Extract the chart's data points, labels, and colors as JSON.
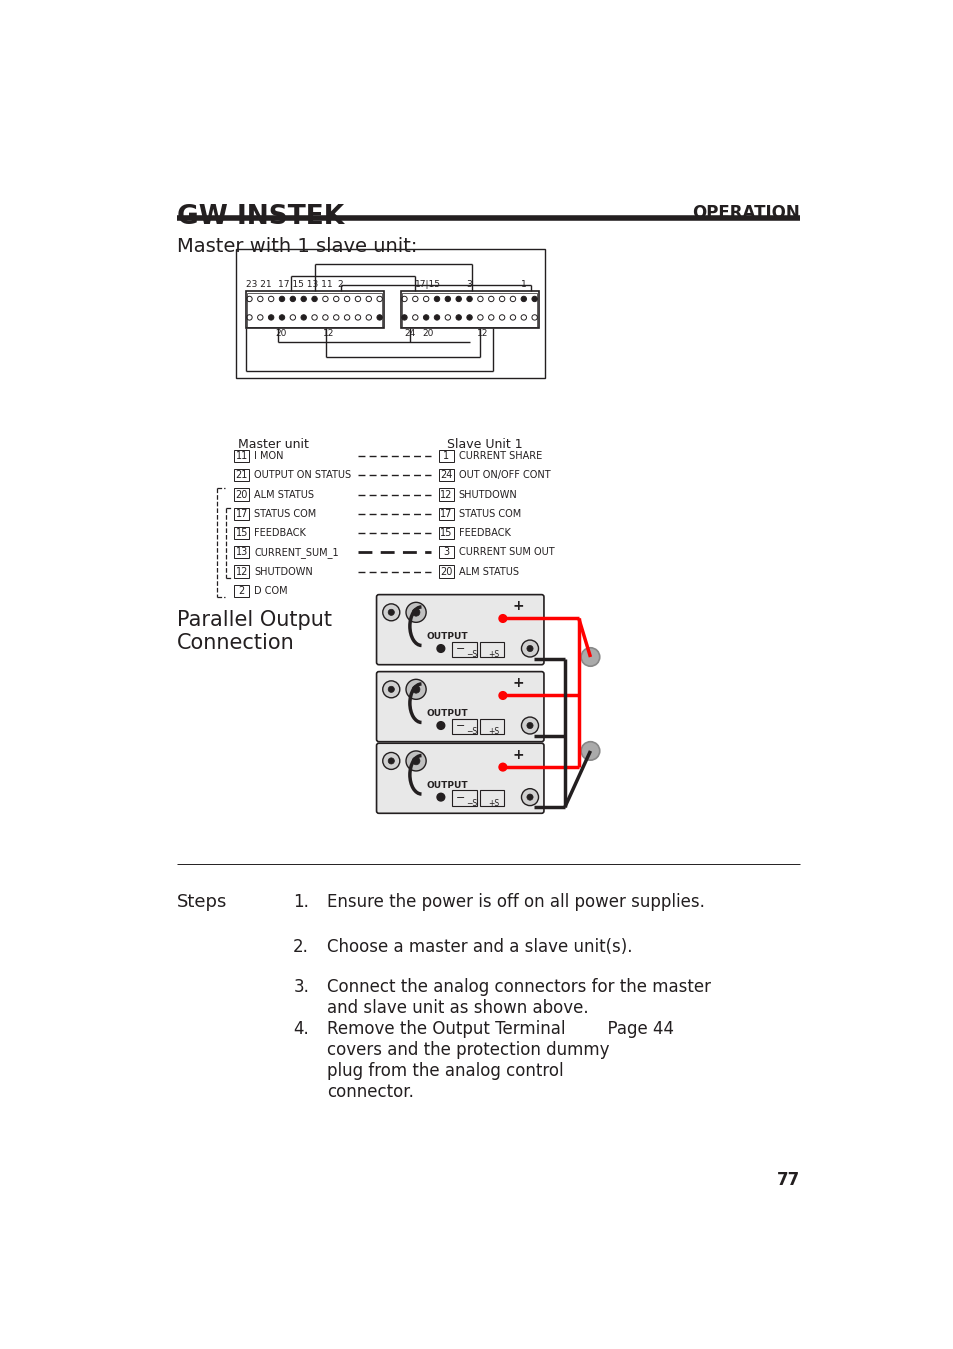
{
  "page_title": "OPERATION",
  "section1_title": "Master with 1 slave unit:",
  "section2_title": "Parallel Output\nConnection",
  "master_unit_label": "Master unit",
  "slave_unit_label": "Slave Unit 1",
  "master_rows": [
    {
      "pin": "11",
      "label": "I MON"
    },
    {
      "pin": "21",
      "label": "OUTPUT ON STATUS"
    },
    {
      "pin": "20",
      "label": "ALM STATUS"
    },
    {
      "pin": "17",
      "label": "STATUS COM"
    },
    {
      "pin": "15",
      "label": "FEEDBACK"
    },
    {
      "pin": "13",
      "label": "CURRENT_SUM_1"
    },
    {
      "pin": "12",
      "label": "SHUTDOWN"
    },
    {
      "pin": "2",
      "label": "D COM"
    }
  ],
  "slave_rows": [
    {
      "pin": "1",
      "label": "CURRENT SHARE",
      "thick": false
    },
    {
      "pin": "24",
      "label": "OUT ON/OFF CONT",
      "thick": false
    },
    {
      "pin": "12",
      "label": "SHUTDOWN",
      "thick": false
    },
    {
      "pin": "17",
      "label": "STATUS COM",
      "thick": false
    },
    {
      "pin": "15",
      "label": "FEEDBACK",
      "thick": false
    },
    {
      "pin": "3",
      "label": "CURRENT SUM OUT",
      "thick": true
    },
    {
      "pin": "20",
      "label": "ALM STATUS",
      "thick": false
    }
  ],
  "steps_label": "Steps",
  "steps": [
    "Ensure the power is off on all power supplies.",
    "Choose a master and a slave unit(s).",
    "Connect the analog connectors for the master\nand slave unit as shown above.",
    "Remove the Output Terminal        Page 44\ncovers and the protection dummy\nplug from the analog control\nconnector."
  ],
  "page_number": "77",
  "bg_color": "#ffffff",
  "text_color": "#231f20"
}
